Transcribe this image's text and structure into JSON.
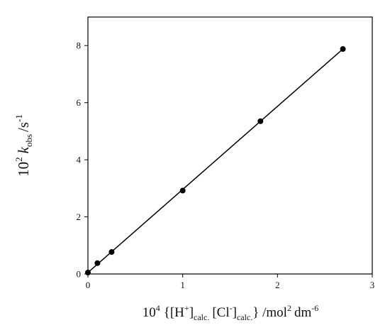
{
  "chart_data": {
    "type": "scatter",
    "title": "",
    "xlabel_parts": {
      "prefix": "10",
      "prefix_exp": "4",
      "open": "{[H",
      "h_sup": "+",
      "h_close": "]",
      "h_sub": "calc.",
      "cl_open": "[Cl",
      "cl_sup": "-",
      "cl_close": "]",
      "cl_sub": "calc.",
      "close": "} /mol",
      "mol_exp": "2",
      "dm": "dm",
      "dm_exp": "-6"
    },
    "ylabel_parts": {
      "prefix": "10",
      "prefix_exp": "2",
      "k": "k",
      "k_sub": "obs",
      "unit": "/s",
      "unit_exp": "-1"
    },
    "xlim": [
      0,
      3
    ],
    "ylim": [
      0,
      9
    ],
    "xticks": [
      0,
      1,
      2,
      3
    ],
    "yticks": [
      0,
      2,
      4,
      6,
      8
    ],
    "xtick_labels": [
      "0",
      "1",
      "2",
      "3"
    ],
    "ytick_labels": [
      "0",
      "2",
      "4",
      "6",
      "8"
    ],
    "grid": false,
    "legend": "none",
    "series": [
      {
        "x": [
          0.0,
          0.1,
          0.25,
          1.0,
          1.82,
          2.69
        ],
        "y": [
          0.05,
          0.38,
          0.77,
          2.92,
          5.35,
          7.88
        ],
        "marker": "filled-circle",
        "color": "#000000"
      }
    ],
    "fit_line": {
      "x": [
        0.0,
        2.69
      ],
      "y": [
        0.05,
        7.88
      ],
      "color": "#000000"
    }
  }
}
